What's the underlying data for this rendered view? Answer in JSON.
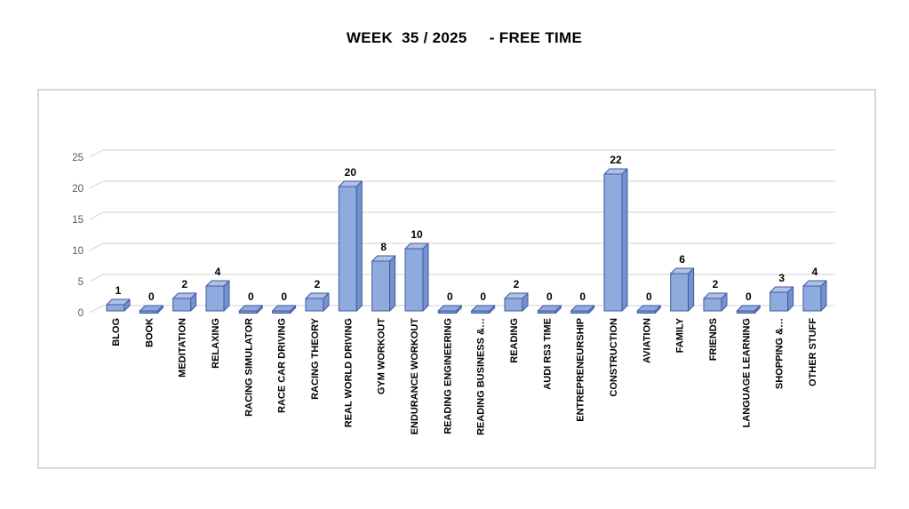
{
  "chart_data": {
    "type": "bar",
    "style": "3d-box",
    "title": "WEEK  35 / 2025     - FREE TIME",
    "categories": [
      "BLOG",
      "BOOK",
      "MEDITATION",
      "RELAXING",
      "RACING SIMULATOR",
      "RACE CAR DRIVING",
      "RACING THEORY",
      "REAL WORLD DRIVING",
      "GYM WORKOUT",
      "ENDURANCE WORKOUT",
      "READING ENGINEERING",
      "READING BUSINESS &…",
      "READING",
      "AUDI RS3 TIME",
      "ENTREPRENEURSHIP",
      "CONSTRUCTION",
      "AVIATION",
      "FAMILY",
      "FRIENDS",
      "LANGUAGE LEARNING",
      "SHOPPING &…",
      "OTHER STUFF"
    ],
    "values": [
      1,
      0,
      2,
      4,
      0,
      0,
      2,
      20,
      8,
      10,
      0,
      0,
      2,
      0,
      0,
      22,
      0,
      6,
      2,
      0,
      3,
      4
    ],
    "data_labels": true,
    "xlabel": "",
    "ylabel": "",
    "ylim": [
      0,
      25
    ],
    "yticks": [
      0,
      5,
      10,
      15,
      20,
      25
    ],
    "grid": true,
    "legend": false,
    "colors": {
      "bar_front": "#8FAADC",
      "bar_top": "#AFC0E7",
      "bar_side": "#7492CF",
      "bar_border": "#41599E",
      "gridline": "#D9D9D9",
      "tick_label": "#595959",
      "data_label": "#000000",
      "category_label": "#000000",
      "chart_border": "#D9D9D9",
      "background": "#FFFFFF"
    }
  }
}
